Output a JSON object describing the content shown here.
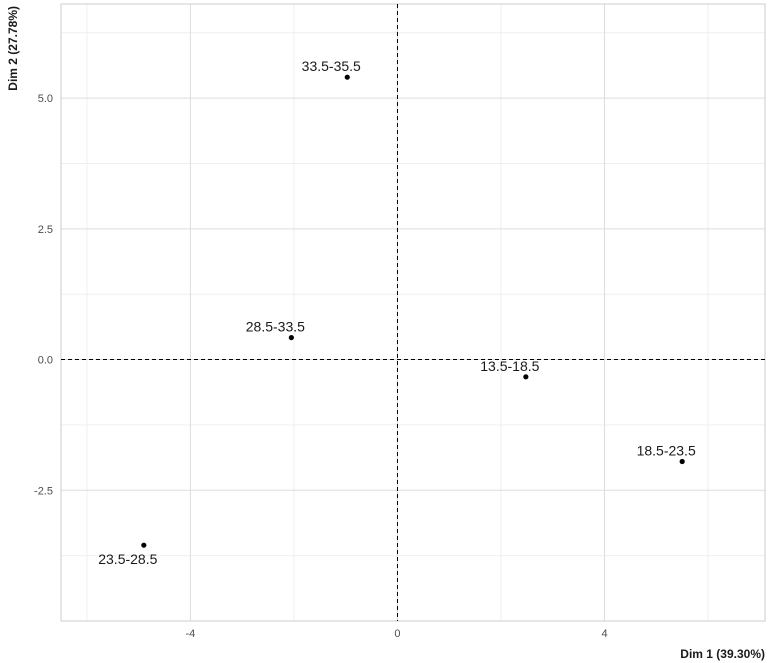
{
  "chart_data": {
    "type": "scatter",
    "xlabel": "Dim 1 (39.30%)",
    "ylabel": "Dim 2 (27.78%)",
    "xlim": [
      -6.5,
      7.1
    ],
    "ylim": [
      -5,
      6.8
    ],
    "x_ticks": [
      -4,
      0,
      4
    ],
    "x_tick_labels": [
      "-4",
      "0",
      "4"
    ],
    "y_ticks": [
      -2.5,
      0,
      2.5,
      5
    ],
    "y_tick_labels": [
      "-2.5",
      "0.0",
      "2.5",
      "5.0"
    ],
    "reference_lines": {
      "x": 0,
      "y": 0,
      "style": "dashed"
    },
    "grid": true,
    "points": [
      {
        "label": "33.5-35.5",
        "x": -0.97,
        "y": 5.4
      },
      {
        "label": "28.5-33.5",
        "x": -2.05,
        "y": 0.42
      },
      {
        "label": "13.5-18.5",
        "x": 2.48,
        "y": -0.33
      },
      {
        "label": "18.5-23.5",
        "x": 5.5,
        "y": -1.95
      },
      {
        "label": "23.5-28.5",
        "x": -4.9,
        "y": -3.55
      }
    ],
    "colors": {
      "point": "#000000",
      "grid_major": "#dedede",
      "grid_minor": "#efefef",
      "panel_border": "#cccccc"
    }
  }
}
